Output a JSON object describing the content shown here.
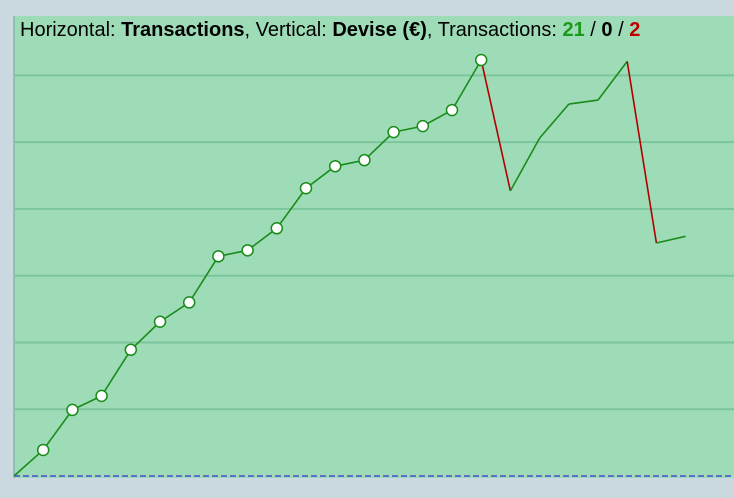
{
  "chart_data": {
    "type": "line",
    "title_parts": [
      {
        "text": "Horizontal: ",
        "bold": false,
        "color": "#000000"
      },
      {
        "text": "Transactions",
        "bold": true,
        "color": "#000000"
      },
      {
        "text": ", Vertical: ",
        "bold": false,
        "color": "#000000"
      },
      {
        "text": "Devise (€)",
        "bold": true,
        "color": "#000000"
      },
      {
        "text": ", Transactions: ",
        "bold": false,
        "color": "#000000"
      },
      {
        "text": "21",
        "bold": true,
        "color": "#1a9a1a"
      },
      {
        "text": " / ",
        "bold": false,
        "color": "#000000"
      },
      {
        "text": "0",
        "bold": true,
        "color": "#000000"
      },
      {
        "text": " / ",
        "bold": false,
        "color": "#000000"
      },
      {
        "text": "2",
        "bold": true,
        "color": "#c00000"
      }
    ],
    "values": [
      0,
      0.39,
      0.99,
      1.2,
      1.89,
      2.31,
      2.6,
      3.29,
      3.38,
      3.71,
      4.31,
      4.64,
      4.73,
      5.15,
      5.24,
      5.48,
      6.23,
      4.27,
      5.06,
      5.57,
      5.63,
      6.21,
      3.49,
      3.59
    ],
    "up_color": "#1a8c1a",
    "down_color": "#b00000",
    "markers": [
      1,
      16
    ],
    "ylim": [
      0,
      6.47
    ],
    "yticks": [
      0,
      1,
      2,
      3,
      4,
      5,
      6
    ],
    "grid": true
  }
}
